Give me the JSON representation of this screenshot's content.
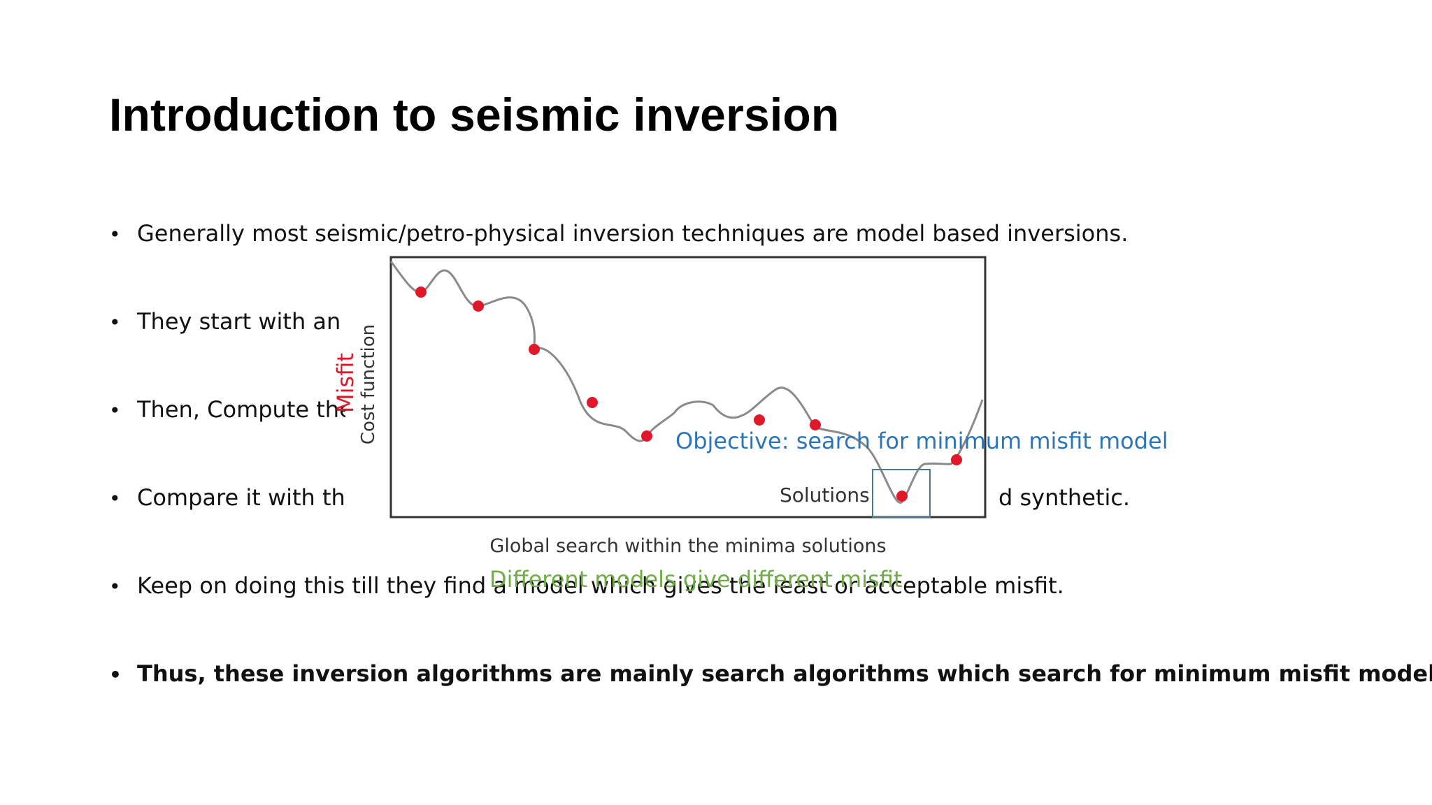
{
  "slide": {
    "title": "Introduction to seismic inversion"
  },
  "bullets": [
    {
      "marker": "•",
      "text": "Generally most seismic/petro-physical inversion techniques are model based inversions."
    },
    {
      "marker": "•",
      "text": "They start with an i"
    },
    {
      "marker": "•",
      "text": "Then, Compute the"
    },
    {
      "marker": "•",
      "text": "Compare it with the",
      "suffix": "d synthetic."
    },
    {
      "marker": "•",
      "text": "Keep on doing this till they find a model which gives the least or acceptable misfit."
    },
    {
      "marker": "•",
      "text": "Thus, these inversion algorithms are mainly search algorithms which search for minimum misfit model."
    }
  ],
  "figure": {
    "y_axis_label": "Cost function",
    "y_axis_annotation": "Misfit",
    "x_axis_label": "Global search within the minima solutions",
    "solutions_label": "Solutions",
    "objective_annotation": "Objective: search for minimum misfit model",
    "bottom_annotation": "Different models give different misfit",
    "colors": {
      "curve": "#8a8a8a",
      "points": "#e0182a",
      "frame": "#333333",
      "objective_text": "#2e75b6",
      "misfit_text": "#e0182a",
      "bottom_text": "#70ad47",
      "solutions_box": "#4a7a8c"
    }
  }
}
